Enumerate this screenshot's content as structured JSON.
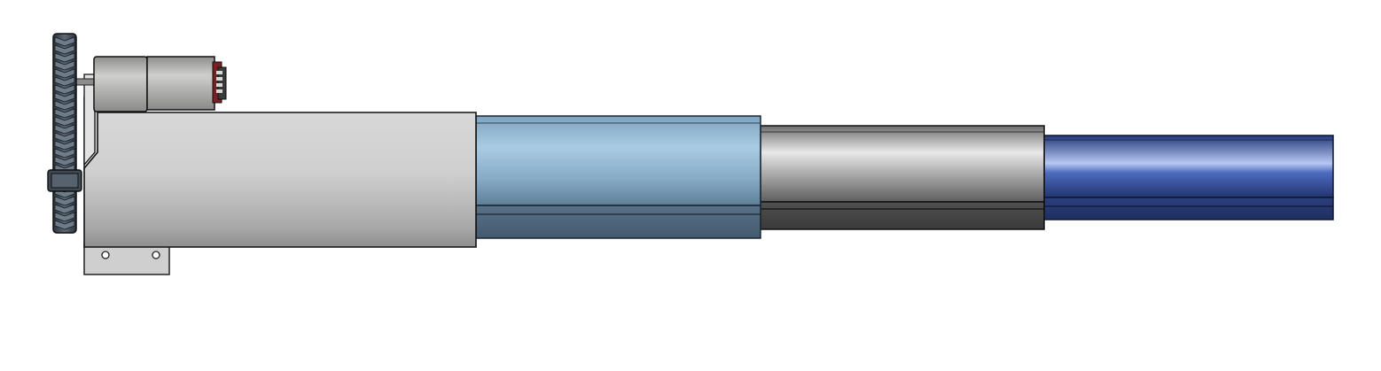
{
  "image": {
    "subject": "telescoping-linear-actuator-cad-render",
    "background_color": "#ffffff"
  },
  "parts": {
    "gear": {
      "name": "drive-gear",
      "color": "#3a4652"
    },
    "motor": {
      "name": "motor",
      "color": "#a8a8a6"
    },
    "base_tube": {
      "name": "base-tube",
      "color": "#bdbdbd"
    },
    "stage_1": {
      "name": "stage-1-tube",
      "color": "#8fb6d2"
    },
    "stage_2": {
      "name": "stage-2-tube",
      "color": "#a4a4a4"
    },
    "stage_3": {
      "name": "stage-3-tube",
      "color": "#3c5aa8"
    },
    "mount_bracket": {
      "name": "mount-bracket",
      "color": "#c9c9c9"
    }
  }
}
